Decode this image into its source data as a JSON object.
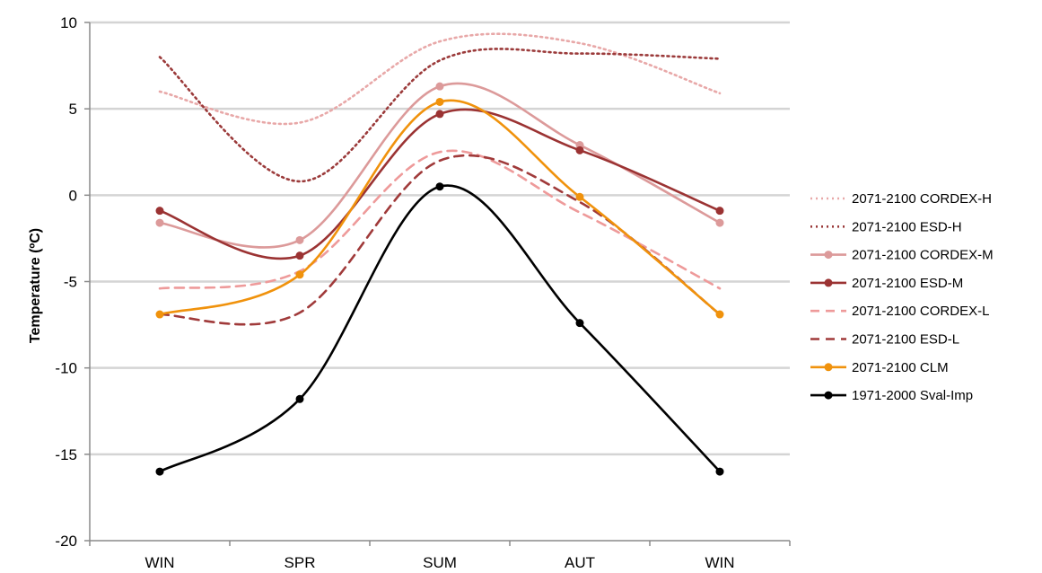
{
  "chart_data": {
    "type": "line",
    "title": "",
    "xlabel": "",
    "ylabel": "Temperature (ºC)",
    "categories": [
      "WIN",
      "SPR",
      "SUM",
      "AUT",
      "WIN"
    ],
    "ylim": [
      -20,
      10
    ],
    "yticks": [
      10,
      5,
      0,
      -5,
      -10,
      -15,
      -20
    ],
    "ytick_labels": [
      "10",
      "5",
      "0",
      "-5",
      "-10",
      "-15",
      "-20"
    ],
    "grid": true,
    "smooth": true,
    "legend_position": "right",
    "series": [
      {
        "name": "2071-2100 CORDEX-H",
        "values": [
          6.0,
          4.2,
          8.9,
          8.8,
          5.9
        ],
        "color": "#e8a8a8",
        "dash": "2,4",
        "marker": false
      },
      {
        "name": "2071-2100 ESD-H",
        "values": [
          8.0,
          0.8,
          7.8,
          8.2,
          7.9
        ],
        "color": "#9b3a3a",
        "dash": "2,4",
        "marker": false
      },
      {
        "name": "2071-2100 CORDEX-M",
        "values": [
          -1.6,
          -2.6,
          6.3,
          2.9,
          -1.6
        ],
        "color": "#dc9a9a",
        "dash": "",
        "marker": true
      },
      {
        "name": "2071-2100 ESD-M",
        "values": [
          -0.9,
          -3.5,
          4.7,
          2.6,
          -0.9
        ],
        "color": "#9b3333",
        "dash": "",
        "marker": true
      },
      {
        "name": "2071-2100 CORDEX-L",
        "values": [
          -5.4,
          -4.4,
          2.5,
          -1.0,
          -5.4
        ],
        "color": "#ee9a9a",
        "dash": "10,7",
        "marker": false
      },
      {
        "name": "2071-2100 ESD-L",
        "values": [
          -6.9,
          -6.8,
          2.0,
          -0.4,
          -6.9
        ],
        "color": "#a03a3a",
        "dash": "10,7",
        "marker": false
      },
      {
        "name": "2071-2100 CLM",
        "values": [
          -6.9,
          -4.6,
          5.4,
          -0.1,
          -6.9
        ],
        "color": "#f0920c",
        "dash": "",
        "marker": true
      },
      {
        "name": "1971-2000 Sval-Imp",
        "values": [
          -16.0,
          -11.8,
          0.5,
          -7.4,
          -16.0
        ],
        "color": "#000000",
        "dash": "",
        "marker": true
      }
    ]
  }
}
